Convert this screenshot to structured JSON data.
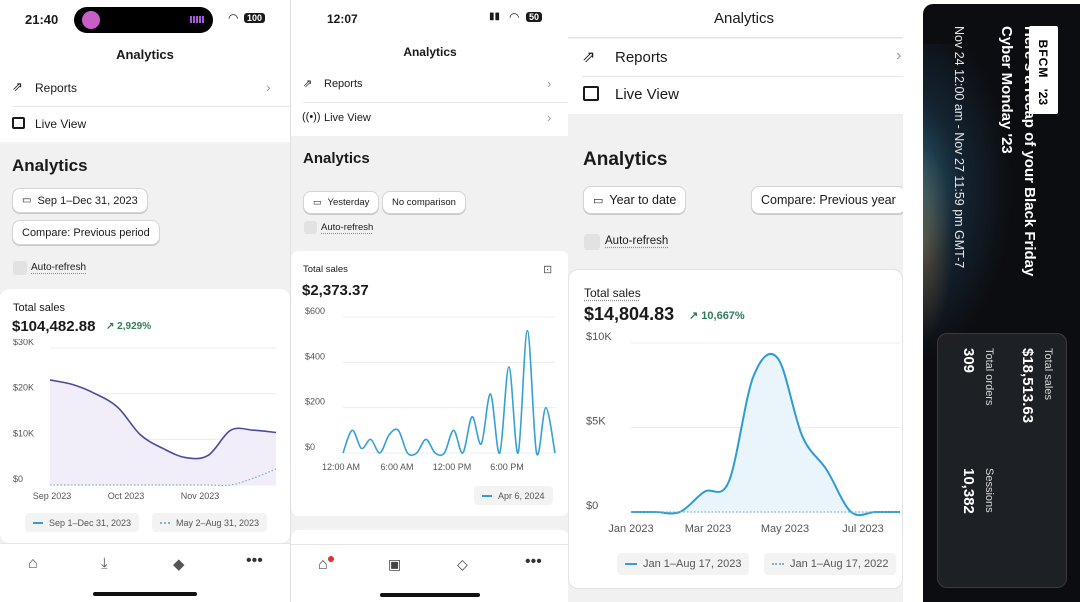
{
  "panel1": {
    "status": {
      "time": "21:40",
      "battery": "100"
    },
    "title": "Analytics",
    "menu": [
      {
        "label": "Reports"
      },
      {
        "label": "Live View"
      }
    ],
    "section_title": "Analytics",
    "date_filter": "Sep 1–Dec 31, 2023",
    "compare_filter": "Compare: Previous period",
    "auto_refresh": "Auto-refresh",
    "card": {
      "title": "Total sales",
      "value": "$104,482.88",
      "change": "2,929%",
      "change_arrow": "↗"
    },
    "chart_data": {
      "type": "line",
      "title": "",
      "xlabel": "",
      "ylabel": "",
      "y_ticks": [
        "$30K",
        "$20K",
        "$10K",
        "$0"
      ],
      "x_ticks": [
        "Sep 2023",
        "Oct 2023",
        "Nov 2023"
      ],
      "ylim": [
        0,
        30000
      ],
      "x": [
        "Sep 1",
        "Sep 15",
        "Oct 1",
        "Oct 10",
        "Oct 20",
        "Nov 1",
        "Nov 10",
        "Nov 20",
        "Dec 1",
        "Dec 15",
        "Dec 31"
      ],
      "series": [
        {
          "name": "Sep 1–Dec 31, 2023",
          "values": [
            23000,
            22000,
            20000,
            17000,
            11000,
            8000,
            6000,
            6500,
            12000,
            12000,
            11500
          ]
        },
        {
          "name": "May 2–Aug 31, 2023",
          "values": [
            0,
            0,
            0,
            0,
            0,
            0,
            0,
            0,
            0,
            1500,
            3500
          ]
        }
      ]
    },
    "legend": [
      "Sep 1–Dec 31, 2023",
      "May 2–Aug 31, 2023"
    ],
    "tabbar": [
      "home-icon",
      "download-icon",
      "tag-icon",
      "more-icon"
    ],
    "colors": {
      "line": "#4a4aa0",
      "fill": "#f1eefa",
      "positive": "#2e7d5a"
    }
  },
  "panel2": {
    "status": {
      "time": "12:07",
      "battery": "50"
    },
    "title": "Analytics",
    "menu": [
      {
        "label": "Reports"
      },
      {
        "label": "Live View"
      }
    ],
    "section_title": "Analytics",
    "date_filter": "Yesterday",
    "compare_filter": "No comparison",
    "auto_refresh": "Auto-refresh",
    "card": {
      "title": "Total sales",
      "value": "$2,373.37"
    },
    "chart_data": {
      "type": "line",
      "title": "",
      "xlabel": "",
      "ylabel": "",
      "y_ticks": [
        "$600",
        "$400",
        "$200",
        "$0"
      ],
      "x_ticks": [
        "12:00 AM",
        "6:00 AM",
        "12:00 PM",
        "6:00 PM"
      ],
      "ylim": [
        0,
        600
      ],
      "x": [
        "0",
        "1",
        "2",
        "3",
        "4",
        "5",
        "6",
        "7",
        "8",
        "9",
        "10",
        "11",
        "12",
        "13",
        "14",
        "15",
        "16",
        "17",
        "18",
        "19",
        "20",
        "21",
        "22",
        "23"
      ],
      "series": [
        {
          "name": "Apr 6, 2024",
          "values": [
            0,
            100,
            20,
            60,
            0,
            80,
            100,
            0,
            0,
            60,
            0,
            0,
            100,
            0,
            160,
            40,
            260,
            0,
            380,
            0,
            540,
            0,
            200,
            0
          ]
        }
      ]
    },
    "legend": [
      "Apr 6, 2024"
    ],
    "tabbar": [
      "home-icon",
      "inbox-icon",
      "tag-icon",
      "more-icon"
    ],
    "colors": {
      "line": "#35a0d4",
      "notification": "#e0312b"
    }
  },
  "panel3": {
    "title": "Analytics",
    "menu": [
      {
        "label": "Reports"
      },
      {
        "label": "Live View"
      }
    ],
    "section_title": "Analytics",
    "date_filter": "Year to date",
    "compare_filter": "Compare: Previous year",
    "auto_refresh": "Auto-refresh",
    "card": {
      "title": "Total sales",
      "value": "$14,804.83",
      "change": "10,667%",
      "change_arrow": "↗"
    },
    "chart_data": {
      "type": "line",
      "title": "",
      "xlabel": "",
      "ylabel": "",
      "y_ticks": [
        "$10K",
        "$5K",
        "$0"
      ],
      "x_ticks": [
        "Jan 2023",
        "Mar 2023",
        "May 2023",
        "Jul 2023"
      ],
      "ylim": [
        0,
        10000
      ],
      "x": [
        "Jan 1",
        "Feb 1",
        "Mar 1",
        "Mar 20",
        "Apr 1",
        "Apr 20",
        "May 1",
        "May 15",
        "Jun 1",
        "Jun 15",
        "Jul 1",
        "Aug 17"
      ],
      "series": [
        {
          "name": "Jan 1–Aug 17, 2023",
          "values": [
            0,
            0,
            0,
            1200,
            1800,
            8000,
            9100,
            4500,
            2500,
            0,
            0,
            0
          ]
        },
        {
          "name": "Jan 1–Aug 17, 2022",
          "values": [
            0,
            0,
            0,
            0,
            0,
            0,
            0,
            0,
            0,
            0,
            0,
            0
          ]
        }
      ]
    },
    "legend": [
      "Jan 1–Aug 17, 2023",
      "Jan 1–Aug 17, 2022"
    ],
    "colors": {
      "line": "#2c9bd6",
      "fill": "#eaf4fb",
      "positive": "#2e7d5a"
    }
  },
  "panel4": {
    "badge_line1": "BFCM",
    "badge_line2": "'23",
    "headline_line1": "Here's a recap of your Black Friday",
    "headline_line2": "Cyber Monday '23",
    "period": "Nov 24 12:00 am - Nov 27 11:59 pm GMT-7",
    "stats": [
      {
        "label": "Total sales",
        "value": "$18,513.63"
      },
      {
        "label": "Total orders",
        "value": "309"
      },
      {
        "label": "Sessions",
        "value": "10,382"
      }
    ]
  }
}
